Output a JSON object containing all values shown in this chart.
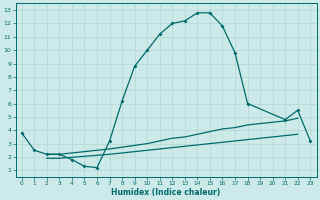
{
  "title": "",
  "xlabel": "Humidex (Indice chaleur)",
  "background_color": "#cceae7",
  "line_color": "#006b6b",
  "grid_color": "#b0d8d4",
  "xlim": [
    -0.5,
    23.5
  ],
  "ylim": [
    0.5,
    13.5
  ],
  "xticks": [
    0,
    1,
    2,
    3,
    4,
    5,
    6,
    7,
    8,
    9,
    10,
    11,
    12,
    13,
    14,
    15,
    16,
    17,
    18,
    19,
    20,
    21,
    22,
    23
  ],
  "yticks": [
    1,
    2,
    3,
    4,
    5,
    6,
    7,
    8,
    9,
    10,
    11,
    12,
    13
  ],
  "curve1_x": [
    0,
    1,
    2,
    3,
    4,
    5,
    6,
    7,
    8,
    9,
    10,
    11,
    12,
    13,
    14,
    15,
    16,
    17,
    18,
    21,
    22,
    23
  ],
  "curve1_y": [
    3.8,
    2.5,
    2.2,
    2.2,
    1.8,
    1.3,
    1.2,
    3.2,
    6.2,
    8.8,
    10.0,
    11.2,
    12.0,
    12.2,
    12.8,
    12.8,
    11.8,
    9.8,
    6.0,
    4.8,
    5.5,
    3.2
  ],
  "curve2_x": [
    2,
    3,
    7,
    10,
    11,
    12,
    13,
    14,
    15,
    16,
    17,
    18,
    19,
    20,
    21,
    22
  ],
  "curve2_y": [
    2.2,
    2.2,
    2.6,
    3.0,
    3.2,
    3.4,
    3.5,
    3.7,
    3.9,
    4.1,
    4.2,
    4.4,
    4.5,
    4.6,
    4.7,
    4.9
  ],
  "curve3_x": [
    2,
    3,
    7,
    10,
    11,
    12,
    13,
    14,
    15,
    16,
    17,
    18,
    19,
    20,
    21,
    22
  ],
  "curve3_y": [
    1.9,
    1.9,
    2.2,
    2.5,
    2.6,
    2.7,
    2.8,
    2.9,
    3.0,
    3.1,
    3.2,
    3.3,
    3.4,
    3.5,
    3.6,
    3.7
  ]
}
